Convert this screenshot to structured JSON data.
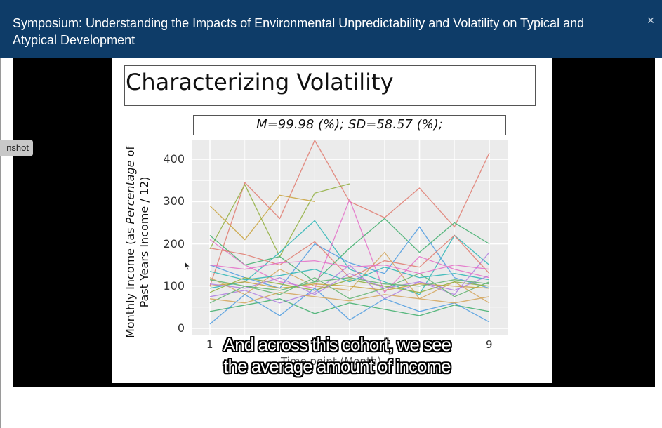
{
  "modal": {
    "title": "Symposium: Understanding the Impacts of Environmental Unpredictability and Volatility on Typical and Atypical Development",
    "close_label": "×"
  },
  "side_tab": {
    "label": "nshot"
  },
  "slide": {
    "title": "Characterizing Volatility",
    "stats": "M=99.98 (%); SD=58.57 (%);",
    "ylabel_line1_pre": "Monthly Income (as ",
    "ylabel_line1_em": "Percentage",
    "ylabel_line1_post": " of",
    "ylabel_line2": "Past Years Income / 12)",
    "xlabel_partial": "Time point (Month)"
  },
  "chart_data": {
    "type": "line",
    "ylabel": "Monthly Income (as Percentage of Past Years Income / 12)",
    "xlabel": "Time point (Month)",
    "x_ticks_visible": [
      "1",
      "9"
    ],
    "y_ticks": [
      0,
      100,
      200,
      300,
      400
    ],
    "x_range": [
      1,
      9
    ],
    "ylim": [
      -15,
      445
    ],
    "grid": true,
    "legend": "none",
    "palette": [
      "#e07a6e",
      "#c9a23b",
      "#8fae3c",
      "#3dae6b",
      "#2bb5b5",
      "#4c9be0",
      "#b07fe0",
      "#e46fc8",
      "#d4a55a",
      "#5fb36e"
    ],
    "series_note": "many overlapping participant trajectories",
    "series": [
      {
        "values": [
          100,
          345,
          260,
          445,
          300,
          262,
          332,
          240,
          415
        ]
      },
      {
        "values": [
          290,
          210,
          315,
          300,
          null,
          null,
          null,
          null,
          null
        ]
      },
      {
        "values": [
          188,
          340,
          170,
          320,
          342,
          null,
          null,
          null,
          null
        ]
      },
      {
        "values": [
          220,
          150,
          170,
          110,
          190,
          260,
          180,
          250,
          200
        ]
      },
      {
        "values": [
          95,
          110,
          180,
          255,
          140,
          110,
          80,
          220,
          150
        ]
      },
      {
        "values": [
          150,
          120,
          95,
          200,
          155,
          130,
          240,
          120,
          95
        ]
      },
      {
        "values": [
          75,
          90,
          60,
          85,
          150,
          70,
          110,
          80,
          180
        ]
      },
      {
        "values": [
          210,
          150,
          110,
          95,
          305,
          85,
          170,
          140,
          120
        ]
      },
      {
        "values": [
          120,
          80,
          140,
          100,
          90,
          180,
          70,
          110,
          60
        ]
      },
      {
        "values": [
          60,
          100,
          80,
          120,
          70,
          95,
          130,
          75,
          110
        ]
      },
      {
        "values": [
          190,
          175,
          150,
          205,
          120,
          160,
          145,
          220,
          130
        ]
      },
      {
        "values": [
          100,
          110,
          95,
          105,
          100,
          90,
          105,
          100,
          95
        ]
      },
      {
        "values": [
          85,
          120,
          105,
          90,
          115,
          100,
          85,
          110,
          100
        ]
      },
      {
        "values": [
          40,
          55,
          70,
          35,
          60,
          45,
          30,
          55,
          40
        ]
      },
      {
        "values": [
          135,
          115,
          125,
          140,
          110,
          145,
          120,
          130,
          115
        ]
      },
      {
        "values": [
          10,
          80,
          30,
          95,
          20,
          70,
          40,
          60,
          15
        ]
      },
      {
        "values": [
          105,
          95,
          120,
          80,
          130,
          95,
          110,
          90,
          125
        ]
      },
      {
        "values": [
          150,
          140,
          155,
          160,
          145,
          150,
          130,
          150,
          140
        ]
      },
      {
        "values": [
          70,
          60,
          85,
          75,
          65,
          80,
          70,
          60,
          75
        ]
      },
      {
        "values": [
          115,
          100,
          90,
          110,
          120,
          105,
          100,
          115,
          105
        ]
      }
    ]
  },
  "captions": [
    "And across this cohort, we see",
    "the average amount of income"
  ]
}
